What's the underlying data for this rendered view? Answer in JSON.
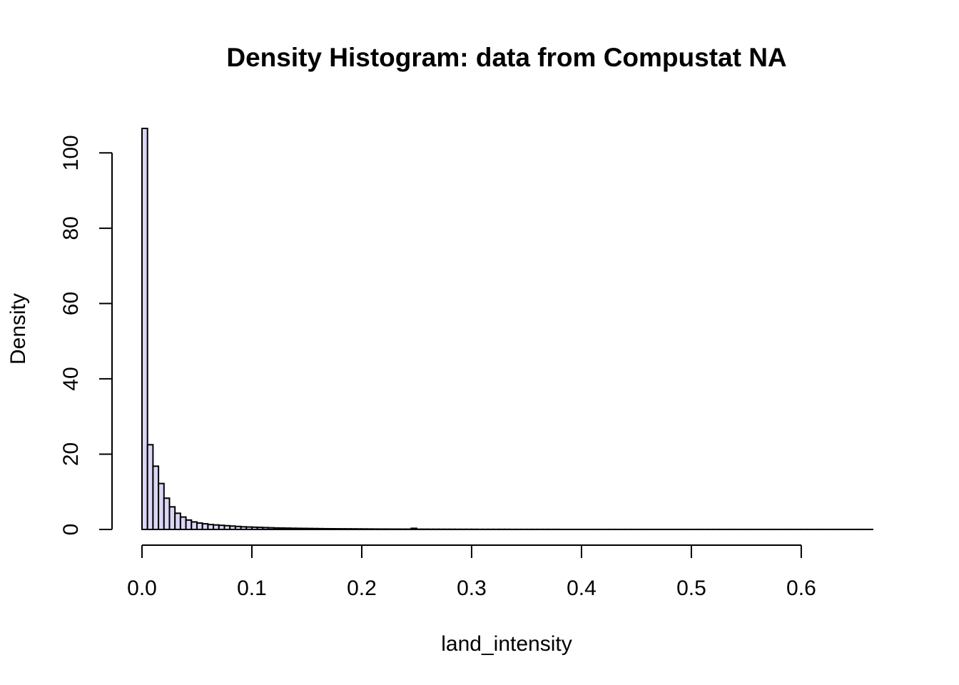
{
  "chart_data": {
    "type": "bar",
    "title": "Density Histogram: data from Compustat NA",
    "xlabel": "land_intensity",
    "ylabel": "Density",
    "bin_width": 0.005,
    "x_start": 0.0,
    "xlim": [
      0,
      0.665
    ],
    "ylim": [
      0,
      106.5
    ],
    "x_ticks": [
      0.0,
      0.1,
      0.2,
      0.3,
      0.4,
      0.5,
      0.6
    ],
    "x_tick_labels": [
      "0.0",
      "0.1",
      "0.2",
      "0.3",
      "0.4",
      "0.5",
      "0.6"
    ],
    "y_ticks": [
      0,
      20,
      40,
      60,
      80,
      100
    ],
    "y_tick_labels": [
      "0",
      "20",
      "40",
      "60",
      "80",
      "100"
    ],
    "bar_color": "#dcd6f5",
    "grid": false,
    "values": [
      106.5,
      22.5,
      16.8,
      12.2,
      8.3,
      6.0,
      4.3,
      3.3,
      2.5,
      2.0,
      1.7,
      1.5,
      1.3,
      1.2,
      1.1,
      1.0,
      0.9,
      0.8,
      0.7,
      0.65,
      0.6,
      0.55,
      0.5,
      0.45,
      0.4,
      0.38,
      0.35,
      0.32,
      0.3,
      0.28,
      0.26,
      0.24,
      0.22,
      0.2,
      0.19,
      0.18,
      0.17,
      0.16,
      0.15,
      0.14,
      0.13,
      0.12,
      0.11,
      0.1,
      0.1,
      0.09,
      0.09,
      0.08,
      0.08,
      0.3,
      0.07,
      0.07,
      0.06,
      0.06,
      0.05,
      0.05,
      0.05,
      0.04,
      0.04,
      0.04,
      0.04,
      0.03,
      0.03,
      0.03,
      0.03,
      0.03,
      0.03,
      0.02,
      0.02,
      0.02,
      0.02,
      0.02,
      0.02,
      0.02,
      0.02,
      0.02,
      0.01,
      0.01,
      0.01,
      0.01,
      0.01,
      0.01,
      0.01,
      0.01,
      0.01,
      0.01,
      0.01,
      0.01,
      0.01,
      0.01,
      0.01,
      0.01,
      0.01,
      0.01,
      0.01,
      0.01,
      0.01,
      0.01,
      0.01,
      0.01,
      0.01,
      0.01,
      0.01,
      0.01,
      0.01,
      0.01,
      0.01,
      0.01,
      0.01,
      0.01,
      0.01,
      0.01,
      0.01,
      0.01,
      0.01,
      0.01,
      0.01,
      0.01,
      0.01,
      0.01,
      0.01,
      0.01,
      0.01,
      0.01,
      0.01,
      0.01,
      0.01,
      0.01,
      0.01,
      0.01,
      0.01,
      0.01,
      0.01
    ]
  }
}
